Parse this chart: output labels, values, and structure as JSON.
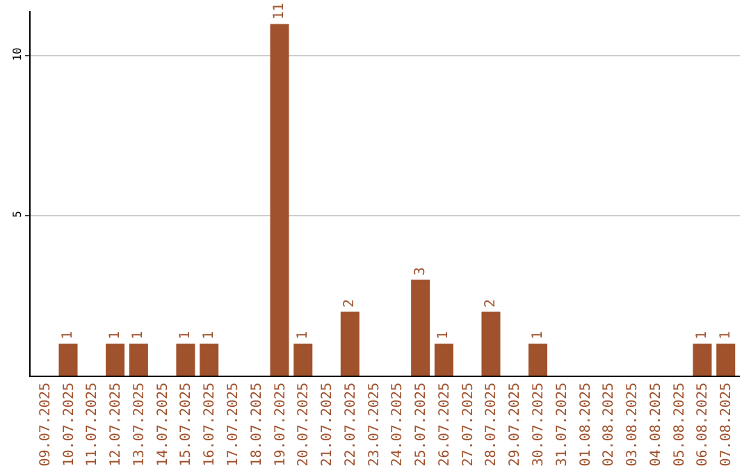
{
  "chart_data": {
    "type": "bar",
    "categories": [
      "09.07.2025",
      "10.07.2025",
      "11.07.2025",
      "12.07.2025",
      "13.07.2025",
      "14.07.2025",
      "15.07.2025",
      "16.07.2025",
      "17.07.2025",
      "18.07.2025",
      "19.07.2025",
      "20.07.2025",
      "21.07.2025",
      "22.07.2025",
      "23.07.2025",
      "24.07.2025",
      "25.07.2025",
      "26.07.2025",
      "27.07.2025",
      "28.07.2025",
      "29.07.2025",
      "30.07.2025",
      "31.07.2025",
      "01.08.2025",
      "02.08.2025",
      "03.08.2025",
      "04.08.2025",
      "05.08.2025",
      "06.08.2025",
      "07.08.2025"
    ],
    "values": [
      0,
      1,
      0,
      1,
      1,
      0,
      1,
      1,
      0,
      0,
      11,
      1,
      0,
      2,
      0,
      0,
      3,
      1,
      0,
      2,
      0,
      1,
      0,
      0,
      0,
      0,
      0,
      0,
      1,
      1
    ],
    "value_labels": [
      null,
      "1",
      null,
      "1",
      "1",
      null,
      "1",
      "1",
      null,
      null,
      "11",
      "1",
      null,
      "2",
      null,
      null,
      "3",
      "1",
      null,
      "2",
      null,
      "1",
      null,
      null,
      null,
      null,
      null,
      null,
      "1",
      "1"
    ],
    "color": "#a0522d",
    "ylim": [
      0,
      11.4
    ],
    "yticks": [
      5,
      10
    ],
    "grid": "y"
  }
}
